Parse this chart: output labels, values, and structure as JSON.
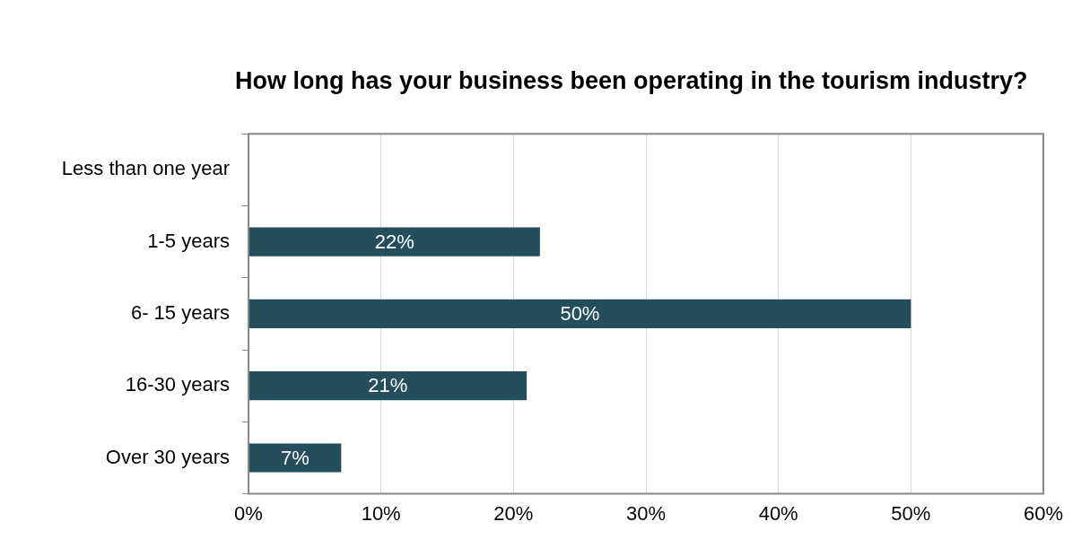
{
  "chart_data": {
    "type": "bar",
    "orientation": "horizontal",
    "title": "How long has your business been operating in the tourism industry?",
    "categories": [
      "Less than one year",
      "1-5 years",
      "6- 15 years",
      "16-30 years",
      "Over 30 years"
    ],
    "values": [
      0,
      22,
      50,
      21,
      7
    ],
    "value_labels": [
      null,
      "22%",
      "50%",
      "21%",
      "7%"
    ],
    "color": "#244e5c",
    "xlim": [
      0,
      60
    ],
    "xticks": [
      {
        "value": 0,
        "label": "0%"
      },
      {
        "value": 10,
        "label": "10%"
      },
      {
        "value": 20,
        "label": "20%"
      },
      {
        "value": 30,
        "label": "30%"
      },
      {
        "value": 40,
        "label": "40%"
      },
      {
        "value": 50,
        "label": "50%"
      },
      {
        "value": 60,
        "label": "60%"
      }
    ],
    "grid": "x",
    "legend": false
  }
}
